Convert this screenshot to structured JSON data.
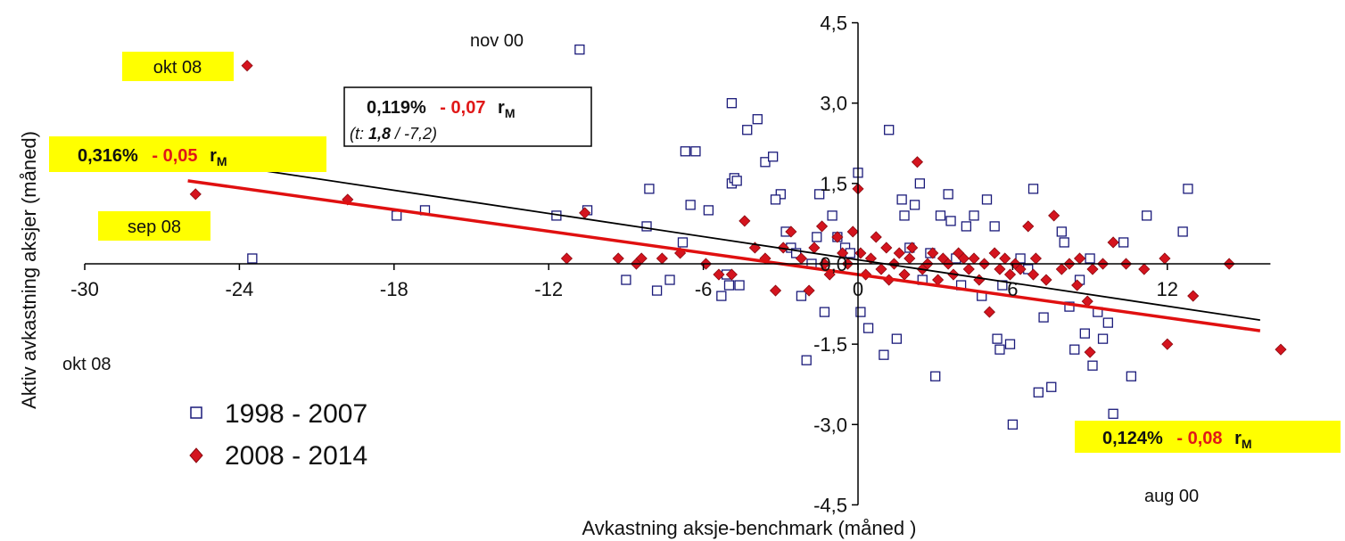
{
  "chart_data": {
    "type": "scatter",
    "xlabel": "Avkastning aksje-benchmark (måned )",
    "ylabel": "Aktiv avkastning aksjer (måned)",
    "xlim": [
      -30,
      16
    ],
    "ylim": [
      -4.5,
      4.5
    ],
    "x_ticks": [
      "-30",
      "-24",
      "-18",
      "-12",
      "-6",
      "0",
      "6",
      "12"
    ],
    "y_ticks": [
      "4,5",
      "3,0",
      "1,5",
      "0,0",
      "-1,5",
      "-3,0",
      "-4,5"
    ],
    "colors": {
      "series1": "#1a1a7a",
      "series2": "#d4141e",
      "fit1": "#000000",
      "fit2": "#e01010",
      "highlight": "#ffff00"
    },
    "series": [
      {
        "name": "1998 - 2007",
        "marker": "open-square",
        "points": [
          [
            -10.8,
            4.0
          ],
          [
            -23.5,
            0.1
          ],
          [
            -17.9,
            0.9
          ],
          [
            -16.8,
            1.0
          ],
          [
            -11.7,
            0.9
          ],
          [
            -10.5,
            1.0
          ],
          [
            -9.0,
            -0.3
          ],
          [
            -8.2,
            0.7
          ],
          [
            -7.8,
            -0.5
          ],
          [
            -8.1,
            1.4
          ],
          [
            -7.3,
            -0.3
          ],
          [
            -6.8,
            0.4
          ],
          [
            -6.7,
            2.1
          ],
          [
            -6.3,
            2.1
          ],
          [
            -6.5,
            1.1
          ],
          [
            -5.8,
            1.0
          ],
          [
            -5.3,
            -0.6
          ],
          [
            -5.0,
            -0.4
          ],
          [
            -5.1,
            -0.2
          ],
          [
            -4.9,
            1.5
          ],
          [
            -4.8,
            1.6
          ],
          [
            -4.7,
            1.55
          ],
          [
            -4.9,
            3.0
          ],
          [
            -4.6,
            -0.4
          ],
          [
            -4.3,
            2.5
          ],
          [
            -3.9,
            2.7
          ],
          [
            -3.6,
            1.9
          ],
          [
            -3.3,
            2.0
          ],
          [
            -3.0,
            1.3
          ],
          [
            -3.2,
            1.2
          ],
          [
            -2.8,
            0.6
          ],
          [
            -2.6,
            0.3
          ],
          [
            -2.4,
            0.2
          ],
          [
            -2.2,
            -0.6
          ],
          [
            -2.0,
            -1.8
          ],
          [
            -1.6,
            0.5
          ],
          [
            -1.5,
            1.3
          ],
          [
            -1.8,
            0.0
          ],
          [
            -1.3,
            -0.9
          ],
          [
            -1.0,
            0.9
          ],
          [
            -0.8,
            0.5
          ],
          [
            -0.5,
            0.3
          ],
          [
            -0.3,
            0.2
          ],
          [
            0.0,
            1.7
          ],
          [
            0.1,
            -0.9
          ],
          [
            0.4,
            -1.2
          ],
          [
            1.0,
            -1.7
          ],
          [
            1.2,
            2.5
          ],
          [
            1.5,
            -1.4
          ],
          [
            1.7,
            1.2
          ],
          [
            1.8,
            0.9
          ],
          [
            2.0,
            0.3
          ],
          [
            2.2,
            1.1
          ],
          [
            2.4,
            1.5
          ],
          [
            2.5,
            -0.3
          ],
          [
            2.8,
            0.2
          ],
          [
            3.0,
            -2.1
          ],
          [
            3.2,
            0.9
          ],
          [
            3.5,
            1.3
          ],
          [
            3.6,
            0.8
          ],
          [
            3.8,
            0.1
          ],
          [
            4.0,
            -0.4
          ],
          [
            4.2,
            0.7
          ],
          [
            4.5,
            0.9
          ],
          [
            4.8,
            -0.6
          ],
          [
            5.0,
            1.2
          ],
          [
            5.3,
            0.7
          ],
          [
            5.4,
            -1.4
          ],
          [
            5.5,
            -1.6
          ],
          [
            5.6,
            -0.4
          ],
          [
            5.9,
            -1.5
          ],
          [
            6.0,
            -3.0
          ],
          [
            6.3,
            0.1
          ],
          [
            6.6,
            -0.1
          ],
          [
            6.8,
            1.4
          ],
          [
            7.0,
            -2.4
          ],
          [
            7.2,
            -1.0
          ],
          [
            7.5,
            -2.3
          ],
          [
            7.9,
            0.6
          ],
          [
            8.0,
            0.4
          ],
          [
            8.2,
            -0.8
          ],
          [
            8.4,
            -1.6
          ],
          [
            8.6,
            -0.3
          ],
          [
            8.8,
            -1.3
          ],
          [
            9.0,
            0.1
          ],
          [
            9.1,
            -1.9
          ],
          [
            9.3,
            -0.9
          ],
          [
            9.5,
            -1.4
          ],
          [
            9.7,
            -1.1
          ],
          [
            9.9,
            -2.8
          ],
          [
            10.3,
            0.4
          ],
          [
            10.6,
            -2.1
          ],
          [
            11.2,
            0.9
          ],
          [
            12.6,
            0.6
          ],
          [
            12.8,
            1.4
          ]
        ]
      },
      {
        "name": "2008 - 2014",
        "marker": "filled-diamond",
        "points": [
          [
            -23.7,
            3.7
          ],
          [
            -25.7,
            1.3
          ],
          [
            -19.8,
            1.2
          ],
          [
            -11.3,
            0.1
          ],
          [
            -10.6,
            0.95
          ],
          [
            -9.3,
            0.1
          ],
          [
            -8.6,
            0.0
          ],
          [
            -8.4,
            0.1
          ],
          [
            -7.6,
            0.1
          ],
          [
            -6.9,
            0.2
          ],
          [
            -5.9,
            0.0
          ],
          [
            -5.4,
            -0.2
          ],
          [
            -4.9,
            -0.2
          ],
          [
            -4.4,
            0.8
          ],
          [
            -4.0,
            0.3
          ],
          [
            -3.6,
            0.1
          ],
          [
            -3.2,
            -0.5
          ],
          [
            -2.9,
            0.3
          ],
          [
            -2.6,
            0.6
          ],
          [
            -2.2,
            0.1
          ],
          [
            -1.9,
            -0.5
          ],
          [
            -1.7,
            0.3
          ],
          [
            -1.4,
            0.7
          ],
          [
            -1.3,
            0.0
          ],
          [
            -1.1,
            -0.2
          ],
          [
            -0.8,
            0.5
          ],
          [
            -0.6,
            0.2
          ],
          [
            -0.4,
            0.0
          ],
          [
            -0.2,
            0.6
          ],
          [
            0.0,
            1.4
          ],
          [
            0.1,
            0.2
          ],
          [
            0.3,
            -0.2
          ],
          [
            0.5,
            0.1
          ],
          [
            0.7,
            0.5
          ],
          [
            0.9,
            -0.1
          ],
          [
            1.1,
            0.3
          ],
          [
            1.2,
            -0.3
          ],
          [
            1.4,
            0.0
          ],
          [
            1.6,
            0.2
          ],
          [
            1.8,
            -0.2
          ],
          [
            2.0,
            0.1
          ],
          [
            2.1,
            0.3
          ],
          [
            2.3,
            1.9
          ],
          [
            2.5,
            -0.1
          ],
          [
            2.7,
            0.0
          ],
          [
            2.9,
            0.2
          ],
          [
            3.1,
            -0.3
          ],
          [
            3.3,
            0.1
          ],
          [
            3.5,
            0.0
          ],
          [
            3.7,
            -0.2
          ],
          [
            3.9,
            0.2
          ],
          [
            4.1,
            0.1
          ],
          [
            4.3,
            -0.1
          ],
          [
            4.5,
            0.1
          ],
          [
            4.7,
            -0.3
          ],
          [
            4.9,
            0.0
          ],
          [
            5.1,
            -0.9
          ],
          [
            5.3,
            0.2
          ],
          [
            5.5,
            -0.1
          ],
          [
            5.7,
            0.1
          ],
          [
            5.9,
            -0.2
          ],
          [
            6.1,
            0.0
          ],
          [
            6.3,
            -0.1
          ],
          [
            6.6,
            0.7
          ],
          [
            6.9,
            0.1
          ],
          [
            7.3,
            -0.3
          ],
          [
            7.6,
            0.9
          ],
          [
            7.9,
            -0.1
          ],
          [
            8.2,
            0.0
          ],
          [
            8.6,
            0.1
          ],
          [
            8.9,
            -0.7
          ],
          [
            9.1,
            -0.1
          ],
          [
            9.5,
            0.0
          ],
          [
            9.9,
            0.4
          ],
          [
            10.4,
            0.0
          ],
          [
            11.1,
            -0.1
          ],
          [
            12.0,
            -1.5
          ],
          [
            13.0,
            -0.6
          ],
          [
            14.4,
            0.0
          ],
          [
            11.9,
            0.1
          ],
          [
            9.0,
            -1.65
          ],
          [
            6.8,
            -0.2
          ],
          [
            16.4,
            -1.6
          ],
          [
            8.5,
            -0.4
          ]
        ]
      }
    ],
    "fit_lines": [
      {
        "name": "fit-1998-2007",
        "x": [
          -26,
          15.6
        ],
        "y": [
          1.95,
          -1.05
        ]
      },
      {
        "name": "fit-2008-2014",
        "x": [
          -26,
          15.6
        ],
        "y": [
          1.55,
          -1.25
        ]
      }
    ],
    "annotations": [
      {
        "text": "okt 08",
        "highlight": true
      },
      {
        "text": "nov 00",
        "highlight": false
      },
      {
        "text": "sep 08",
        "highlight": true
      },
      {
        "text": "okt 08",
        "highlight": false
      },
      {
        "text": "aug 00",
        "highlight": false
      }
    ],
    "equation_boxes": [
      {
        "intercept": "0,316%",
        "slope": "- 0,05",
        "r": "r",
        "sub": "M"
      },
      {
        "intercept": "0,119%",
        "slope": "- 0,07",
        "r": "r",
        "sub": "M",
        "tline_a": "(t: ",
        "tline_b": "1,8",
        "tline_c": "  /   -7,2)"
      },
      {
        "intercept": "0,124%",
        "slope": "- 0,08",
        "r": "r",
        "sub": "M"
      }
    ],
    "legend": [
      {
        "label": "1998 - 2007"
      },
      {
        "label": "2008 - 2014"
      }
    ]
  }
}
